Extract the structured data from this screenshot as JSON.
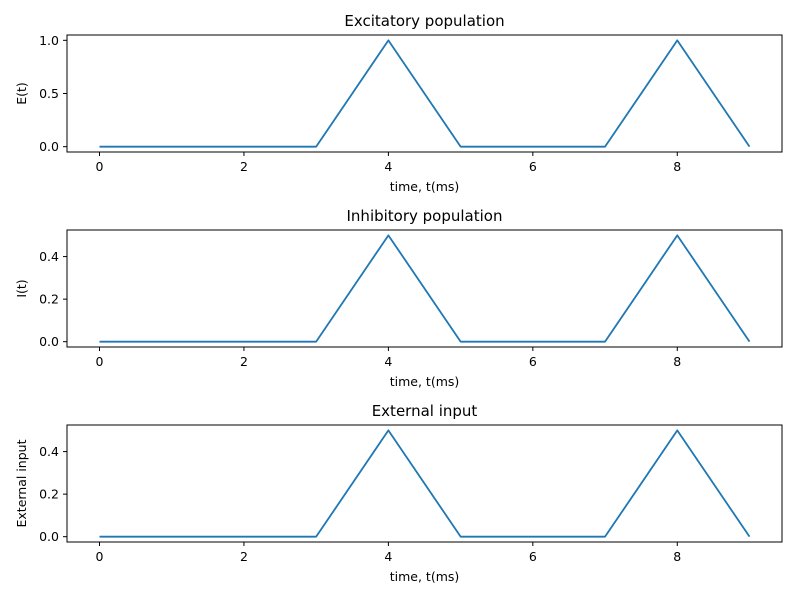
{
  "chart_data": [
    {
      "type": "line",
      "title": "Excitatory population",
      "xlabel": "time, t(ms)",
      "ylabel": "E(t)",
      "x": [
        0,
        1,
        2,
        3,
        4,
        5,
        6,
        7,
        8,
        9
      ],
      "series": [
        {
          "values": [
            0,
            0,
            0,
            0,
            1.0,
            0,
            0,
            0,
            1.0,
            0
          ]
        }
      ],
      "xlim": [
        -0.45,
        9.45
      ],
      "ylim": [
        -0.05,
        1.05
      ],
      "xticks": [
        0,
        2,
        4,
        6,
        8
      ],
      "xtick_labels": [
        "0",
        "2",
        "4",
        "6",
        "8"
      ],
      "yticks": [
        0,
        0.5,
        1.0
      ],
      "ytick_labels": [
        "0.0",
        "0.5",
        "1.0"
      ],
      "grid": false
    },
    {
      "type": "line",
      "title": "Inhibitory population",
      "xlabel": "time, t(ms)",
      "ylabel": "I(t)",
      "x": [
        0,
        1,
        2,
        3,
        4,
        5,
        6,
        7,
        8,
        9
      ],
      "series": [
        {
          "values": [
            0,
            0,
            0,
            0,
            0.5,
            0,
            0,
            0,
            0.5,
            0
          ]
        }
      ],
      "xlim": [
        -0.45,
        9.45
      ],
      "ylim": [
        -0.025,
        0.525
      ],
      "xticks": [
        0,
        2,
        4,
        6,
        8
      ],
      "xtick_labels": [
        "0",
        "2",
        "4",
        "6",
        "8"
      ],
      "yticks": [
        0,
        0.2,
        0.4
      ],
      "ytick_labels": [
        "0.0",
        "0.2",
        "0.4"
      ],
      "grid": false
    },
    {
      "type": "line",
      "title": "External input",
      "xlabel": "time, t(ms)",
      "ylabel": "External input",
      "x": [
        0,
        1,
        2,
        3,
        4,
        5,
        6,
        7,
        8,
        9
      ],
      "series": [
        {
          "values": [
            0,
            0,
            0,
            0,
            0.5,
            0,
            0,
            0,
            0.5,
            0
          ]
        }
      ],
      "xlim": [
        -0.45,
        9.45
      ],
      "ylim": [
        -0.025,
        0.525
      ],
      "xticks": [
        0,
        2,
        4,
        6,
        8
      ],
      "xtick_labels": [
        "0",
        "2",
        "4",
        "6",
        "8"
      ],
      "yticks": [
        0,
        0.2,
        0.4
      ],
      "ytick_labels": [
        "0.0",
        "0.2",
        "0.4"
      ],
      "grid": false
    }
  ],
  "colors": {
    "line": "#1f77b4",
    "axes": "#000000",
    "background": "#ffffff"
  }
}
